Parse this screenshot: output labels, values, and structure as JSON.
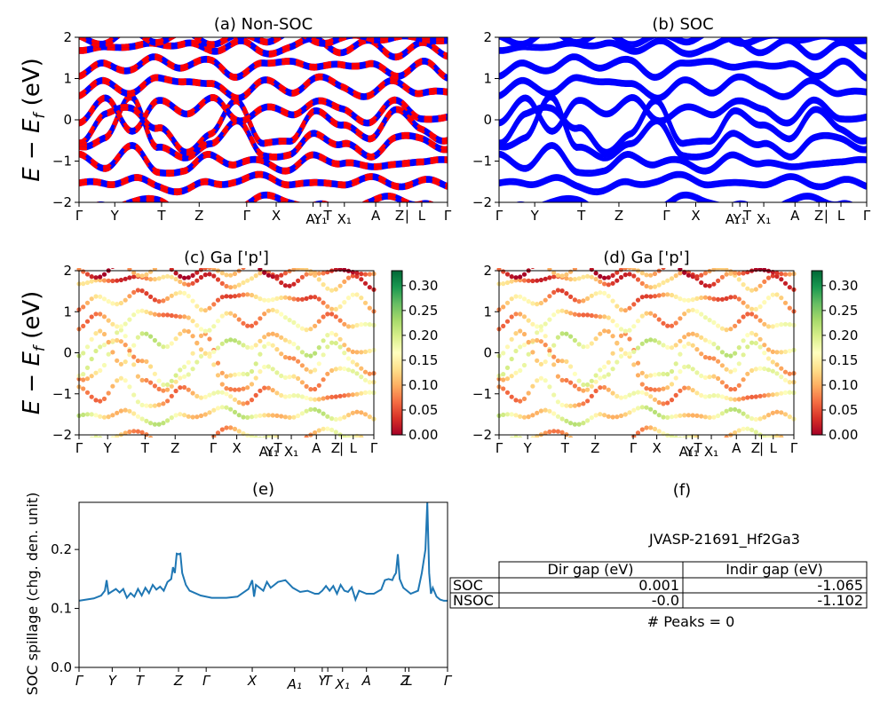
{
  "figure_title": "JVASP-21691_Hf2Ga3",
  "kpath_labels": [
    "Γ",
    "Y",
    "T",
    "Z",
    "Γ",
    "X",
    "A₁",
    "Y₁",
    "T",
    "X₁",
    "A",
    "Z",
    "|",
    "L",
    "Γ"
  ],
  "kpath_positions": [
    0,
    0.097,
    0.224,
    0.326,
    0.455,
    0.535,
    0.635,
    0.655,
    0.675,
    0.72,
    0.805,
    0.87,
    0.89,
    0.93,
    1.0
  ],
  "chart_data": [
    {
      "id": "a",
      "type": "line",
      "title": "(a) Non-SOC",
      "ylabel": "E − E_f (eV)",
      "ylim": [
        -2,
        2
      ],
      "yticks": [
        -2,
        -1,
        0,
        1,
        2
      ],
      "series_colors": [
        "#0000ff",
        "#ff0000"
      ],
      "bands": [
        [
          -2.3,
          -2.1,
          -1.95,
          -2.0,
          -2.15,
          -2.2,
          -2.05,
          -1.9,
          -1.95,
          -2.1,
          -2.2,
          -2.0,
          -1.9,
          -2.0,
          -2.3
        ],
        [
          -1.6,
          -1.5,
          -1.45,
          -1.6,
          -1.7,
          -1.55,
          -1.45,
          -1.4,
          -1.5,
          -1.6,
          -1.5,
          -1.45,
          -1.55,
          -1.5,
          -1.6
        ],
        [
          -0.9,
          -1.1,
          -0.7,
          -1.2,
          -1.3,
          -0.8,
          -1.1,
          -1.0,
          -1.2,
          -0.9,
          -1.0,
          -1.2,
          -1.0,
          -1.1,
          -0.9
        ],
        [
          -0.65,
          -0.4,
          0.5,
          -0.6,
          -1.0,
          -0.5,
          -0.1,
          -0.8,
          -0.9,
          -0.3,
          -0.6,
          -0.9,
          -0.4,
          -0.5,
          -0.65
        ],
        [
          -0.5,
          0.1,
          0.3,
          -0.2,
          -0.8,
          -0.3,
          0.4,
          -0.5,
          -0.6,
          0.3,
          -0.2,
          -0.4,
          0.2,
          -0.2,
          -0.5
        ],
        [
          0.0,
          0.45,
          -0.2,
          0.4,
          0.2,
          0.5,
          0.0,
          0.3,
          0.1,
          0.5,
          0.2,
          0.0,
          0.4,
          0.1,
          0.0
        ],
        [
          0.6,
          0.9,
          0.7,
          0.95,
          1.0,
          0.8,
          0.6,
          0.9,
          0.7,
          1.0,
          0.8,
          0.6,
          0.9,
          0.7,
          0.6
        ],
        [
          1.0,
          1.4,
          1.2,
          1.5,
          1.3,
          1.4,
          1.1,
          1.3,
          1.5,
          1.2,
          1.4,
          1.3,
          1.1,
          1.4,
          1.0
        ],
        [
          1.6,
          1.85,
          1.7,
          1.9,
          1.8,
          1.7,
          1.9,
          1.6,
          1.8,
          1.9,
          1.7,
          1.85,
          1.6,
          1.8,
          1.6
        ],
        [
          2.0,
          1.9,
          2.1,
          1.95,
          2.05,
          1.9,
          2.0,
          1.95,
          2.1,
          1.9,
          2.0,
          1.95,
          2.05,
          1.9,
          2.0
        ]
      ]
    },
    {
      "id": "b",
      "type": "line",
      "title": "(b) SOC",
      "ylabel": "",
      "ylim": [
        -2,
        2
      ],
      "yticks": [
        -2,
        -1,
        0,
        1,
        2
      ],
      "series_colors": [
        "#0000ff"
      ],
      "bands": [
        [
          -2.3,
          -2.1,
          -1.95,
          -2.0,
          -2.15,
          -2.2,
          -2.05,
          -1.9,
          -1.95,
          -2.1,
          -2.2,
          -2.0,
          -1.9,
          -2.0,
          -2.3
        ],
        [
          -1.6,
          -1.5,
          -1.45,
          -1.6,
          -1.7,
          -1.55,
          -1.45,
          -1.4,
          -1.5,
          -1.6,
          -1.5,
          -1.45,
          -1.55,
          -1.5,
          -1.6
        ],
        [
          -0.9,
          -1.1,
          -0.7,
          -1.2,
          -1.3,
          -0.8,
          -1.1,
          -1.0,
          -1.2,
          -0.9,
          -1.0,
          -1.2,
          -1.0,
          -1.1,
          -0.9
        ],
        [
          -0.65,
          -0.4,
          0.5,
          -0.6,
          -1.0,
          -0.5,
          -0.1,
          -0.8,
          -0.9,
          -0.3,
          -0.6,
          -0.9,
          -0.4,
          -0.5,
          -0.65
        ],
        [
          -0.5,
          0.1,
          0.3,
          -0.2,
          -0.8,
          -0.3,
          0.4,
          -0.5,
          -0.6,
          0.3,
          -0.2,
          -0.4,
          0.2,
          -0.2,
          -0.5
        ],
        [
          0.0,
          0.45,
          -0.2,
          0.4,
          0.2,
          0.5,
          0.0,
          0.3,
          0.1,
          0.5,
          0.2,
          0.0,
          0.4,
          0.1,
          0.0
        ],
        [
          0.6,
          0.9,
          0.7,
          0.95,
          1.0,
          0.8,
          0.6,
          0.9,
          0.7,
          1.0,
          0.8,
          0.6,
          0.9,
          0.7,
          0.6
        ],
        [
          1.0,
          1.4,
          1.2,
          1.5,
          1.3,
          1.4,
          1.1,
          1.3,
          1.5,
          1.2,
          1.4,
          1.3,
          1.1,
          1.4,
          1.0
        ],
        [
          1.6,
          1.85,
          1.7,
          1.9,
          1.8,
          1.7,
          1.9,
          1.6,
          1.8,
          1.9,
          1.7,
          1.85,
          1.6,
          1.8,
          1.6
        ],
        [
          2.0,
          1.9,
          2.1,
          1.95,
          2.05,
          1.9,
          2.0,
          1.95,
          2.1,
          1.9,
          2.0,
          1.95,
          2.05,
          1.9,
          2.0
        ]
      ]
    },
    {
      "id": "c",
      "type": "scatter",
      "title": "(c)  Ga ['p']",
      "ylabel": "E − E_f (eV)",
      "ylim": [
        -2,
        2
      ],
      "yticks": [
        -2,
        -1,
        0,
        1,
        2
      ],
      "colorbar": {
        "cmap": "RdYlGn",
        "range": [
          0,
          0.33
        ],
        "ticks": [
          "0.00",
          "0.05",
          "0.10",
          "0.15",
          "0.20",
          "0.25",
          "0.30"
        ]
      },
      "projection_weights": [
        0.05,
        0.08,
        0.12,
        0.13,
        0.14,
        0.16,
        0.12,
        0.1,
        0.08,
        0.06
      ]
    },
    {
      "id": "d",
      "type": "scatter",
      "title": "(d) Ga ['p']",
      "ylabel": "",
      "ylim": [
        -2,
        2
      ],
      "yticks": [
        -2,
        -1,
        0,
        1,
        2
      ],
      "colorbar": {
        "cmap": "RdYlGn",
        "range": [
          0,
          0.33
        ],
        "ticks": [
          "0.00",
          "0.05",
          "0.10",
          "0.15",
          "0.20",
          "0.25",
          "0.30"
        ]
      },
      "projection_weights": [
        0.05,
        0.08,
        0.12,
        0.13,
        0.14,
        0.16,
        0.12,
        0.1,
        0.08,
        0.06
      ]
    },
    {
      "id": "e",
      "type": "line",
      "title": "(e)",
      "ylabel": "SOC spillage (chg. den. unit)",
      "ylim": [
        0,
        0.28
      ],
      "yticks": [
        0.0,
        0.1,
        0.2
      ],
      "ytick_labels": [
        "0.0",
        "0.1",
        "0.2"
      ],
      "kpath_labels_italic": [
        "Γ",
        "Y",
        "T",
        "Z",
        "Γ",
        "X",
        "A₁",
        "Y",
        "T",
        "X₁",
        "A",
        "Z",
        "L",
        "Γ"
      ],
      "kpath_positions_e": [
        0,
        0.09,
        0.165,
        0.27,
        0.345,
        0.47,
        0.585,
        0.66,
        0.675,
        0.715,
        0.78,
        0.885,
        0.895,
        1.0
      ],
      "line_color": "#1f77b4",
      "x": [
        0,
        0.04,
        0.06,
        0.07,
        0.075,
        0.08,
        0.1,
        0.11,
        0.12,
        0.13,
        0.14,
        0.15,
        0.16,
        0.17,
        0.18,
        0.19,
        0.2,
        0.21,
        0.22,
        0.23,
        0.24,
        0.25,
        0.255,
        0.26,
        0.265,
        0.27,
        0.275,
        0.28,
        0.29,
        0.3,
        0.33,
        0.36,
        0.4,
        0.43,
        0.46,
        0.47,
        0.475,
        0.48,
        0.5,
        0.51,
        0.52,
        0.53,
        0.54,
        0.56,
        0.58,
        0.6,
        0.62,
        0.64,
        0.65,
        0.66,
        0.67,
        0.68,
        0.69,
        0.7,
        0.71,
        0.72,
        0.73,
        0.74,
        0.75,
        0.76,
        0.78,
        0.8,
        0.82,
        0.83,
        0.84,
        0.85,
        0.855,
        0.86,
        0.865,
        0.87,
        0.88,
        0.9,
        0.92,
        0.93,
        0.94,
        0.945,
        0.95,
        0.955,
        0.96,
        0.97,
        0.98,
        0.99,
        1.0
      ],
      "y": [
        0.113,
        0.117,
        0.122,
        0.13,
        0.148,
        0.125,
        0.133,
        0.127,
        0.133,
        0.118,
        0.126,
        0.12,
        0.133,
        0.122,
        0.135,
        0.126,
        0.14,
        0.132,
        0.137,
        0.13,
        0.145,
        0.15,
        0.17,
        0.16,
        0.193,
        0.192,
        0.193,
        0.16,
        0.14,
        0.13,
        0.122,
        0.118,
        0.118,
        0.12,
        0.133,
        0.148,
        0.12,
        0.14,
        0.13,
        0.145,
        0.135,
        0.14,
        0.145,
        0.148,
        0.135,
        0.128,
        0.13,
        0.125,
        0.125,
        0.13,
        0.138,
        0.13,
        0.138,
        0.125,
        0.14,
        0.13,
        0.128,
        0.136,
        0.115,
        0.13,
        0.125,
        0.125,
        0.132,
        0.148,
        0.15,
        0.148,
        0.155,
        0.16,
        0.192,
        0.15,
        0.135,
        0.125,
        0.13,
        0.16,
        0.2,
        0.28,
        0.16,
        0.125,
        0.135,
        0.12,
        0.115,
        0.113,
        0.113
      ]
    }
  ],
  "panel_f": {
    "title": "(f)",
    "name": "JVASP-21691_Hf2Ga3",
    "columns": [
      "Dir gap (eV)",
      "Indir gap (eV)"
    ],
    "rows": [
      {
        "label": "SOC",
        "dir": "0.001",
        "indir": "-1.065"
      },
      {
        "label": "NSOC",
        "dir": "-0.0",
        "indir": "-1.102"
      }
    ],
    "peaks": "# Peaks = 0"
  }
}
